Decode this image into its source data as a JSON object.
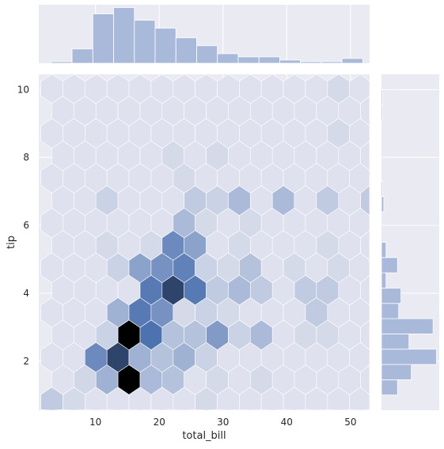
{
  "chart_data": {
    "type": "hexbin",
    "title": "",
    "xlabel": "total_bill",
    "ylabel": "tip",
    "xlim": [
      1.1,
      53.0
    ],
    "ylim": [
      0.55,
      10.45
    ],
    "x_ticks": [
      10,
      20,
      30,
      40,
      50
    ],
    "y_ticks": [
      2,
      4,
      6,
      8,
      10
    ],
    "grid": true,
    "legend": "none",
    "colors": {
      "background": "#eaeaf2",
      "grid": "#ffffff",
      "hex_base": "#4c72b0",
      "hex_dark": "#000000",
      "bar": "#a9b9d9",
      "bar_edge": "#ffffff",
      "text": "#262626"
    },
    "hexbin": {
      "bins_per_axis": 15,
      "x_step": 3.46,
      "x_origin": 3.15,
      "y_step": 0.66,
      "y_origin": 0.79,
      "max_count": 13,
      "cells": [
        [
          0,
          0,
          0.2
        ],
        [
          1,
          0,
          0.1
        ],
        [
          2,
          0,
          0.05
        ],
        [
          3,
          0,
          0.05
        ],
        [
          4,
          0,
          0.05
        ],
        [
          5,
          0,
          0.05
        ],
        [
          6,
          0,
          0.05
        ],
        [
          7,
          0,
          0.1
        ],
        [
          8,
          0,
          0.05
        ],
        [
          9,
          0,
          0.05
        ],
        [
          10,
          0,
          0.05
        ],
        [
          11,
          0,
          0.05
        ],
        [
          12,
          0,
          0.05
        ],
        [
          13,
          0,
          0.05
        ],
        [
          14,
          0,
          0.05
        ],
        [
          0,
          1,
          0.05
        ],
        [
          1,
          1,
          0.12
        ],
        [
          2,
          1,
          0.35
        ],
        [
          3,
          1,
          1.0
        ],
        [
          4,
          1,
          0.3
        ],
        [
          5,
          1,
          0.25
        ],
        [
          6,
          1,
          0.05
        ],
        [
          7,
          1,
          0.1
        ],
        [
          8,
          1,
          0.05
        ],
        [
          9,
          1,
          0.1
        ],
        [
          10,
          1,
          0.05
        ],
        [
          11,
          1,
          0.05
        ],
        [
          12,
          1,
          0.05
        ],
        [
          13,
          1,
          0.05
        ],
        [
          14,
          1,
          0.05
        ],
        [
          0,
          2,
          0.05
        ],
        [
          1,
          2,
          0.05
        ],
        [
          2,
          2,
          0.6
        ],
        [
          3,
          2,
          0.85
        ],
        [
          4,
          2,
          0.35
        ],
        [
          5,
          2,
          0.25
        ],
        [
          6,
          2,
          0.35
        ],
        [
          7,
          2,
          0.15
        ],
        [
          8,
          2,
          0.05
        ],
        [
          9,
          2,
          0.05
        ],
        [
          10,
          2,
          0.05
        ],
        [
          11,
          2,
          0.05
        ],
        [
          12,
          2,
          0.05
        ],
        [
          13,
          2,
          0.05
        ],
        [
          14,
          2,
          0.05
        ],
        [
          0,
          3,
          0.05
        ],
        [
          1,
          3,
          0.05
        ],
        [
          2,
          3,
          0.15
        ],
        [
          3,
          3,
          1.0
        ],
        [
          4,
          3,
          0.75
        ],
        [
          5,
          3,
          0.25
        ],
        [
          6,
          3,
          0.25
        ],
        [
          7,
          3,
          0.5
        ],
        [
          8,
          3,
          0.15
        ],
        [
          9,
          3,
          0.3
        ],
        [
          10,
          3,
          0.05
        ],
        [
          11,
          3,
          0.1
        ],
        [
          12,
          3,
          0.1
        ],
        [
          13,
          3,
          0.05
        ],
        [
          14,
          3,
          0.05
        ],
        [
          0,
          4,
          0.05
        ],
        [
          1,
          4,
          0.05
        ],
        [
          2,
          4,
          0.05
        ],
        [
          3,
          4,
          0.35
        ],
        [
          4,
          4,
          0.7
        ],
        [
          5,
          4,
          0.55
        ],
        [
          6,
          4,
          0.1
        ],
        [
          7,
          4,
          0.15
        ],
        [
          8,
          4,
          0.1
        ],
        [
          9,
          4,
          0.05
        ],
        [
          10,
          4,
          0.05
        ],
        [
          11,
          4,
          0.05
        ],
        [
          12,
          4,
          0.2
        ],
        [
          13,
          4,
          0.05
        ],
        [
          14,
          4,
          0.05
        ],
        [
          0,
          5,
          0.05
        ],
        [
          1,
          5,
          0.05
        ],
        [
          2,
          5,
          0.05
        ],
        [
          3,
          5,
          0.05
        ],
        [
          4,
          5,
          0.7
        ],
        [
          5,
          5,
          0.85
        ],
        [
          6,
          5,
          0.7
        ],
        [
          7,
          5,
          0.2
        ],
        [
          8,
          5,
          0.3
        ],
        [
          9,
          5,
          0.2
        ],
        [
          10,
          5,
          0.05
        ],
        [
          11,
          5,
          0.2
        ],
        [
          12,
          5,
          0.2
        ],
        [
          13,
          5,
          0.05
        ],
        [
          14,
          5,
          0.05
        ],
        [
          0,
          6,
          0.05
        ],
        [
          1,
          6,
          0.05
        ],
        [
          2,
          6,
          0.05
        ],
        [
          3,
          6,
          0.15
        ],
        [
          4,
          6,
          0.45
        ],
        [
          5,
          6,
          0.55
        ],
        [
          6,
          6,
          0.65
        ],
        [
          7,
          6,
          0.15
        ],
        [
          8,
          6,
          0.1
        ],
        [
          9,
          6,
          0.25
        ],
        [
          10,
          6,
          0.05
        ],
        [
          11,
          6,
          0.1
        ],
        [
          12,
          6,
          0.05
        ],
        [
          13,
          6,
          0.1
        ],
        [
          14,
          6,
          0.05
        ],
        [
          0,
          7,
          0.05
        ],
        [
          1,
          7,
          0.05
        ],
        [
          2,
          7,
          0.1
        ],
        [
          3,
          7,
          0.05
        ],
        [
          4,
          7,
          0.1
        ],
        [
          5,
          7,
          0.6
        ],
        [
          6,
          7,
          0.45
        ],
        [
          7,
          7,
          0.05
        ],
        [
          8,
          7,
          0.1
        ],
        [
          9,
          7,
          0.05
        ],
        [
          10,
          7,
          0.05
        ],
        [
          11,
          7,
          0.05
        ],
        [
          12,
          7,
          0.1
        ],
        [
          13,
          7,
          0.05
        ],
        [
          14,
          7,
          0.05
        ],
        [
          0,
          8,
          0.05
        ],
        [
          1,
          8,
          0.05
        ],
        [
          2,
          8,
          0.05
        ],
        [
          3,
          8,
          0.05
        ],
        [
          4,
          8,
          0.05
        ],
        [
          5,
          8,
          0.05
        ],
        [
          6,
          8,
          0.3
        ],
        [
          7,
          8,
          0.1
        ],
        [
          8,
          8,
          0.05
        ],
        [
          9,
          8,
          0.1
        ],
        [
          10,
          8,
          0.05
        ],
        [
          11,
          8,
          0.05
        ],
        [
          12,
          8,
          0.05
        ],
        [
          13,
          8,
          0.05
        ],
        [
          14,
          8,
          0.05
        ],
        [
          0,
          9,
          0.05
        ],
        [
          1,
          9,
          0.05
        ],
        [
          2,
          9,
          0.15
        ],
        [
          3,
          9,
          0.05
        ],
        [
          4,
          9,
          0.05
        ],
        [
          5,
          9,
          0.05
        ],
        [
          6,
          9,
          0.2
        ],
        [
          7,
          9,
          0.15
        ],
        [
          8,
          9,
          0.3
        ],
        [
          9,
          9,
          0.05
        ],
        [
          10,
          9,
          0.3
        ],
        [
          11,
          9,
          0.05
        ],
        [
          12,
          9,
          0.2
        ],
        [
          13,
          9,
          0.05
        ],
        [
          14,
          9,
          0.2
        ],
        [
          0,
          10,
          0.05
        ],
        [
          1,
          10,
          0.05
        ],
        [
          2,
          10,
          0.05
        ],
        [
          3,
          10,
          0.05
        ],
        [
          4,
          10,
          0.05
        ],
        [
          5,
          10,
          0.05
        ],
        [
          6,
          10,
          0.1
        ],
        [
          7,
          10,
          0.05
        ],
        [
          8,
          10,
          0.05
        ],
        [
          9,
          10,
          0.05
        ],
        [
          10,
          10,
          0.05
        ],
        [
          11,
          10,
          0.05
        ],
        [
          12,
          10,
          0.05
        ],
        [
          13,
          10,
          0.05
        ],
        [
          14,
          10,
          0.05
        ],
        [
          0,
          11,
          0.05
        ],
        [
          1,
          11,
          0.05
        ],
        [
          2,
          11,
          0.05
        ],
        [
          3,
          11,
          0.05
        ],
        [
          4,
          11,
          0.05
        ],
        [
          5,
          11,
          0.1
        ],
        [
          6,
          11,
          0.05
        ],
        [
          7,
          11,
          0.1
        ],
        [
          8,
          11,
          0.05
        ],
        [
          9,
          11,
          0.05
        ],
        [
          10,
          11,
          0.05
        ],
        [
          11,
          11,
          0.05
        ],
        [
          12,
          11,
          0.05
        ],
        [
          13,
          11,
          0.05
        ],
        [
          14,
          11,
          0.05
        ],
        [
          0,
          12,
          0.05
        ],
        [
          1,
          12,
          0.05
        ],
        [
          2,
          12,
          0.05
        ],
        [
          3,
          12,
          0.05
        ],
        [
          4,
          12,
          0.05
        ],
        [
          5,
          12,
          0.05
        ],
        [
          6,
          12,
          0.05
        ],
        [
          7,
          12,
          0.05
        ],
        [
          8,
          12,
          0.05
        ],
        [
          9,
          12,
          0.05
        ],
        [
          10,
          12,
          0.05
        ],
        [
          11,
          12,
          0.05
        ],
        [
          12,
          12,
          0.05
        ],
        [
          13,
          12,
          0.1
        ],
        [
          14,
          12,
          0.05
        ],
        [
          0,
          13,
          0.05
        ],
        [
          1,
          13,
          0.05
        ],
        [
          2,
          13,
          0.05
        ],
        [
          3,
          13,
          0.05
        ],
        [
          4,
          13,
          0.05
        ],
        [
          5,
          13,
          0.05
        ],
        [
          6,
          13,
          0.05
        ],
        [
          7,
          13,
          0.05
        ],
        [
          8,
          13,
          0.05
        ],
        [
          9,
          13,
          0.05
        ],
        [
          10,
          13,
          0.05
        ],
        [
          11,
          13,
          0.05
        ],
        [
          12,
          13,
          0.05
        ],
        [
          13,
          13,
          0.05
        ],
        [
          14,
          13,
          0.05
        ],
        [
          0,
          14,
          0.05
        ],
        [
          1,
          14,
          0.05
        ],
        [
          2,
          14,
          0.05
        ],
        [
          3,
          14,
          0.05
        ],
        [
          4,
          14,
          0.05
        ],
        [
          5,
          14,
          0.05
        ],
        [
          6,
          14,
          0.05
        ],
        [
          7,
          14,
          0.05
        ],
        [
          8,
          14,
          0.05
        ],
        [
          9,
          14,
          0.05
        ],
        [
          10,
          14,
          0.05
        ],
        [
          11,
          14,
          0.05
        ],
        [
          12,
          14,
          0.05
        ],
        [
          13,
          14,
          0.1
        ],
        [
          14,
          14,
          0.05
        ]
      ]
    },
    "marginal_x": {
      "type": "histogram",
      "bin_edges": [
        3.07,
        6.32,
        9.58,
        12.84,
        16.1,
        19.35,
        22.61,
        25.87,
        29.12,
        32.38,
        35.64,
        38.9,
        42.15,
        45.41,
        48.67,
        51.93
      ],
      "counts": [
        1,
        9,
        31,
        35,
        27,
        22,
        16,
        11,
        6,
        4,
        4,
        2,
        1,
        1,
        3
      ]
    },
    "marginal_y": {
      "type": "histogram",
      "bin_edges": [
        1.0,
        1.45,
        1.9,
        2.35,
        2.8,
        3.25,
        3.7,
        4.15,
        4.6,
        5.05,
        5.5,
        5.95,
        6.4,
        6.85,
        7.3,
        7.75,
        8.2,
        8.65,
        9.1,
        9.55,
        10.0
      ],
      "counts": [
        14,
        26,
        48,
        24,
        45,
        15,
        17,
        4,
        14,
        4,
        0,
        0,
        2,
        1,
        0,
        0,
        0,
        0,
        1,
        1
      ]
    }
  }
}
